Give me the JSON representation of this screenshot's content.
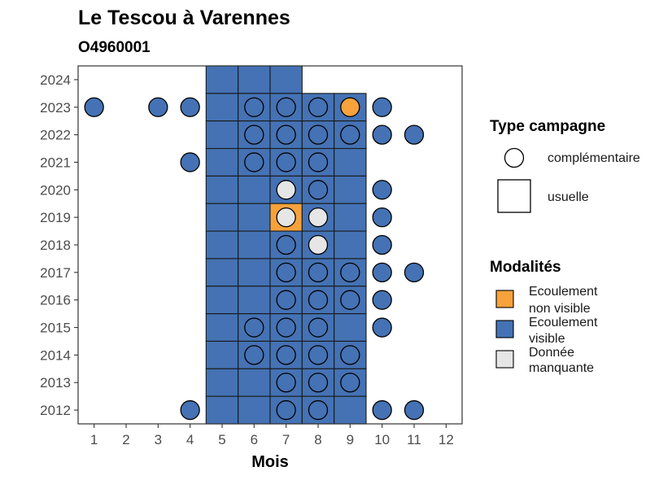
{
  "chart_data": {
    "type": "heatmap",
    "title": "Le Tescou à Varennes",
    "subtitle": "O4960001",
    "xlabel": "Mois",
    "ylabel": "",
    "x_ticks": [
      "1",
      "2",
      "3",
      "4",
      "5",
      "6",
      "7",
      "8",
      "9",
      "10",
      "11",
      "12"
    ],
    "y_ticks": [
      "2012",
      "2013",
      "2014",
      "2015",
      "2016",
      "2017",
      "2018",
      "2019",
      "2020",
      "2021",
      "2022",
      "2023",
      "2024"
    ],
    "xlim": [
      0.5,
      12.5
    ],
    "ylim": [
      2011.5,
      2024.5
    ],
    "grid": false,
    "legend_position": "right",
    "colors": {
      "Ecoulement non visible": "#f7a23b",
      "Ecoulement visible": "#4472b4",
      "Donnée manquante": "#e6e6e6"
    },
    "legend_type": {
      "title": "Type campagne",
      "entries": [
        {
          "label": "complémentaire",
          "shape": "circle"
        },
        {
          "label": "usuelle",
          "shape": "square"
        }
      ]
    },
    "legend_modalites": {
      "title": "Modalités",
      "entries": [
        {
          "label_lines": [
            "Ecoulement",
            "non visible"
          ],
          "key": "Ecoulement non visible"
        },
        {
          "label_lines": [
            "Ecoulement",
            "visible"
          ],
          "key": "Ecoulement visible"
        },
        {
          "label_lines": [
            "Donnée",
            "manquante"
          ],
          "key": "Donnée manquante"
        }
      ]
    },
    "usuelle": [
      {
        "year": 2024,
        "month": 5,
        "modalite": "Ecoulement visible"
      },
      {
        "year": 2024,
        "month": 6,
        "modalite": "Ecoulement visible"
      },
      {
        "year": 2024,
        "month": 7,
        "modalite": "Ecoulement visible"
      },
      {
        "year": 2023,
        "month": 5,
        "modalite": "Ecoulement visible"
      },
      {
        "year": 2023,
        "month": 6,
        "modalite": "Ecoulement visible"
      },
      {
        "year": 2023,
        "month": 7,
        "modalite": "Ecoulement visible"
      },
      {
        "year": 2023,
        "month": 8,
        "modalite": "Ecoulement visible"
      },
      {
        "year": 2023,
        "month": 9,
        "modalite": "Ecoulement visible"
      },
      {
        "year": 2022,
        "month": 5,
        "modalite": "Ecoulement visible"
      },
      {
        "year": 2022,
        "month": 6,
        "modalite": "Ecoulement visible"
      },
      {
        "year": 2022,
        "month": 7,
        "modalite": "Ecoulement visible"
      },
      {
        "year": 2022,
        "month": 8,
        "modalite": "Ecoulement visible"
      },
      {
        "year": 2022,
        "month": 9,
        "modalite": "Ecoulement visible"
      },
      {
        "year": 2021,
        "month": 5,
        "modalite": "Ecoulement visible"
      },
      {
        "year": 2021,
        "month": 6,
        "modalite": "Ecoulement visible"
      },
      {
        "year": 2021,
        "month": 7,
        "modalite": "Ecoulement visible"
      },
      {
        "year": 2021,
        "month": 8,
        "modalite": "Ecoulement visible"
      },
      {
        "year": 2021,
        "month": 9,
        "modalite": "Ecoulement visible"
      },
      {
        "year": 2020,
        "month": 5,
        "modalite": "Ecoulement visible"
      },
      {
        "year": 2020,
        "month": 6,
        "modalite": "Ecoulement visible"
      },
      {
        "year": 2020,
        "month": 7,
        "modalite": "Ecoulement visible"
      },
      {
        "year": 2020,
        "month": 8,
        "modalite": "Ecoulement visible"
      },
      {
        "year": 2020,
        "month": 9,
        "modalite": "Ecoulement visible"
      },
      {
        "year": 2019,
        "month": 5,
        "modalite": "Ecoulement visible"
      },
      {
        "year": 2019,
        "month": 6,
        "modalite": "Ecoulement visible"
      },
      {
        "year": 2019,
        "month": 7,
        "modalite": "Ecoulement non visible"
      },
      {
        "year": 2019,
        "month": 8,
        "modalite": "Ecoulement visible"
      },
      {
        "year": 2019,
        "month": 9,
        "modalite": "Ecoulement visible"
      },
      {
        "year": 2018,
        "month": 5,
        "modalite": "Ecoulement visible"
      },
      {
        "year": 2018,
        "month": 6,
        "modalite": "Ecoulement visible"
      },
      {
        "year": 2018,
        "month": 7,
        "modalite": "Ecoulement visible"
      },
      {
        "year": 2018,
        "month": 8,
        "modalite": "Ecoulement visible"
      },
      {
        "year": 2018,
        "month": 9,
        "modalite": "Ecoulement visible"
      },
      {
        "year": 2017,
        "month": 5,
        "modalite": "Ecoulement visible"
      },
      {
        "year": 2017,
        "month": 6,
        "modalite": "Ecoulement visible"
      },
      {
        "year": 2017,
        "month": 7,
        "modalite": "Ecoulement visible"
      },
      {
        "year": 2017,
        "month": 8,
        "modalite": "Ecoulement visible"
      },
      {
        "year": 2017,
        "month": 9,
        "modalite": "Ecoulement visible"
      },
      {
        "year": 2016,
        "month": 5,
        "modalite": "Ecoulement visible"
      },
      {
        "year": 2016,
        "month": 6,
        "modalite": "Ecoulement visible"
      },
      {
        "year": 2016,
        "month": 7,
        "modalite": "Ecoulement visible"
      },
      {
        "year": 2016,
        "month": 8,
        "modalite": "Ecoulement visible"
      },
      {
        "year": 2016,
        "month": 9,
        "modalite": "Ecoulement visible"
      },
      {
        "year": 2015,
        "month": 5,
        "modalite": "Ecoulement visible"
      },
      {
        "year": 2015,
        "month": 6,
        "modalite": "Ecoulement visible"
      },
      {
        "year": 2015,
        "month": 7,
        "modalite": "Ecoulement visible"
      },
      {
        "year": 2015,
        "month": 8,
        "modalite": "Ecoulement visible"
      },
      {
        "year": 2015,
        "month": 9,
        "modalite": "Ecoulement visible"
      },
      {
        "year": 2014,
        "month": 5,
        "modalite": "Ecoulement visible"
      },
      {
        "year": 2014,
        "month": 6,
        "modalite": "Ecoulement visible"
      },
      {
        "year": 2014,
        "month": 7,
        "modalite": "Ecoulement visible"
      },
      {
        "year": 2014,
        "month": 8,
        "modalite": "Ecoulement visible"
      },
      {
        "year": 2014,
        "month": 9,
        "modalite": "Ecoulement visible"
      },
      {
        "year": 2013,
        "month": 5,
        "modalite": "Ecoulement visible"
      },
      {
        "year": 2013,
        "month": 6,
        "modalite": "Ecoulement visible"
      },
      {
        "year": 2013,
        "month": 7,
        "modalite": "Ecoulement visible"
      },
      {
        "year": 2013,
        "month": 8,
        "modalite": "Ecoulement visible"
      },
      {
        "year": 2013,
        "month": 9,
        "modalite": "Ecoulement visible"
      },
      {
        "year": 2012,
        "month": 5,
        "modalite": "Ecoulement visible"
      },
      {
        "year": 2012,
        "month": 6,
        "modalite": "Ecoulement visible"
      },
      {
        "year": 2012,
        "month": 7,
        "modalite": "Ecoulement visible"
      },
      {
        "year": 2012,
        "month": 8,
        "modalite": "Ecoulement visible"
      },
      {
        "year": 2012,
        "month": 9,
        "modalite": "Ecoulement visible"
      }
    ],
    "complementaire": [
      {
        "year": 2023,
        "month": 1,
        "modalite": "Ecoulement visible"
      },
      {
        "year": 2023,
        "month": 3,
        "modalite": "Ecoulement visible"
      },
      {
        "year": 2023,
        "month": 4,
        "modalite": "Ecoulement visible"
      },
      {
        "year": 2023,
        "month": 6,
        "modalite": "Ecoulement visible"
      },
      {
        "year": 2023,
        "month": 7,
        "modalite": "Ecoulement visible"
      },
      {
        "year": 2023,
        "month": 8,
        "modalite": "Ecoulement visible"
      },
      {
        "year": 2023,
        "month": 9,
        "modalite": "Ecoulement non visible"
      },
      {
        "year": 2023,
        "month": 10,
        "modalite": "Ecoulement visible"
      },
      {
        "year": 2022,
        "month": 6,
        "modalite": "Ecoulement visible"
      },
      {
        "year": 2022,
        "month": 7,
        "modalite": "Ecoulement visible"
      },
      {
        "year": 2022,
        "month": 8,
        "modalite": "Ecoulement visible"
      },
      {
        "year": 2022,
        "month": 9,
        "modalite": "Ecoulement visible"
      },
      {
        "year": 2022,
        "month": 10,
        "modalite": "Ecoulement visible"
      },
      {
        "year": 2022,
        "month": 11,
        "modalite": "Ecoulement visible"
      },
      {
        "year": 2021,
        "month": 4,
        "modalite": "Ecoulement visible"
      },
      {
        "year": 2021,
        "month": 6,
        "modalite": "Ecoulement visible"
      },
      {
        "year": 2021,
        "month": 7,
        "modalite": "Ecoulement visible"
      },
      {
        "year": 2021,
        "month": 8,
        "modalite": "Ecoulement visible"
      },
      {
        "year": 2020,
        "month": 7,
        "modalite": "Donnée manquante"
      },
      {
        "year": 2020,
        "month": 8,
        "modalite": "Ecoulement visible"
      },
      {
        "year": 2020,
        "month": 10,
        "modalite": "Ecoulement visible"
      },
      {
        "year": 2019,
        "month": 7,
        "modalite": "Donnée manquante"
      },
      {
        "year": 2019,
        "month": 8,
        "modalite": "Donnée manquante"
      },
      {
        "year": 2019,
        "month": 10,
        "modalite": "Ecoulement visible"
      },
      {
        "year": 2018,
        "month": 7,
        "modalite": "Ecoulement visible"
      },
      {
        "year": 2018,
        "month": 8,
        "modalite": "Donnée manquante"
      },
      {
        "year": 2018,
        "month": 10,
        "modalite": "Ecoulement visible"
      },
      {
        "year": 2017,
        "month": 7,
        "modalite": "Ecoulement visible"
      },
      {
        "year": 2017,
        "month": 8,
        "modalite": "Ecoulement visible"
      },
      {
        "year": 2017,
        "month": 9,
        "modalite": "Ecoulement visible"
      },
      {
        "year": 2017,
        "month": 10,
        "modalite": "Ecoulement visible"
      },
      {
        "year": 2017,
        "month": 11,
        "modalite": "Ecoulement visible"
      },
      {
        "year": 2016,
        "month": 7,
        "modalite": "Ecoulement visible"
      },
      {
        "year": 2016,
        "month": 8,
        "modalite": "Ecoulement visible"
      },
      {
        "year": 2016,
        "month": 9,
        "modalite": "Ecoulement visible"
      },
      {
        "year": 2016,
        "month": 10,
        "modalite": "Ecoulement visible"
      },
      {
        "year": 2015,
        "month": 6,
        "modalite": "Ecoulement visible"
      },
      {
        "year": 2015,
        "month": 7,
        "modalite": "Ecoulement visible"
      },
      {
        "year": 2015,
        "month": 8,
        "modalite": "Ecoulement visible"
      },
      {
        "year": 2015,
        "month": 10,
        "modalite": "Ecoulement visible"
      },
      {
        "year": 2014,
        "month": 6,
        "modalite": "Ecoulement visible"
      },
      {
        "year": 2014,
        "month": 7,
        "modalite": "Ecoulement visible"
      },
      {
        "year": 2014,
        "month": 8,
        "modalite": "Ecoulement visible"
      },
      {
        "year": 2014,
        "month": 9,
        "modalite": "Ecoulement visible"
      },
      {
        "year": 2013,
        "month": 7,
        "modalite": "Ecoulement visible"
      },
      {
        "year": 2013,
        "month": 8,
        "modalite": "Ecoulement visible"
      },
      {
        "year": 2013,
        "month": 9,
        "modalite": "Ecoulement visible"
      },
      {
        "year": 2012,
        "month": 4,
        "modalite": "Ecoulement visible"
      },
      {
        "year": 2012,
        "month": 7,
        "modalite": "Ecoulement visible"
      },
      {
        "year": 2012,
        "month": 8,
        "modalite": "Ecoulement visible"
      },
      {
        "year": 2012,
        "month": 10,
        "modalite": "Ecoulement visible"
      },
      {
        "year": 2012,
        "month": 11,
        "modalite": "Ecoulement visible"
      }
    ]
  }
}
